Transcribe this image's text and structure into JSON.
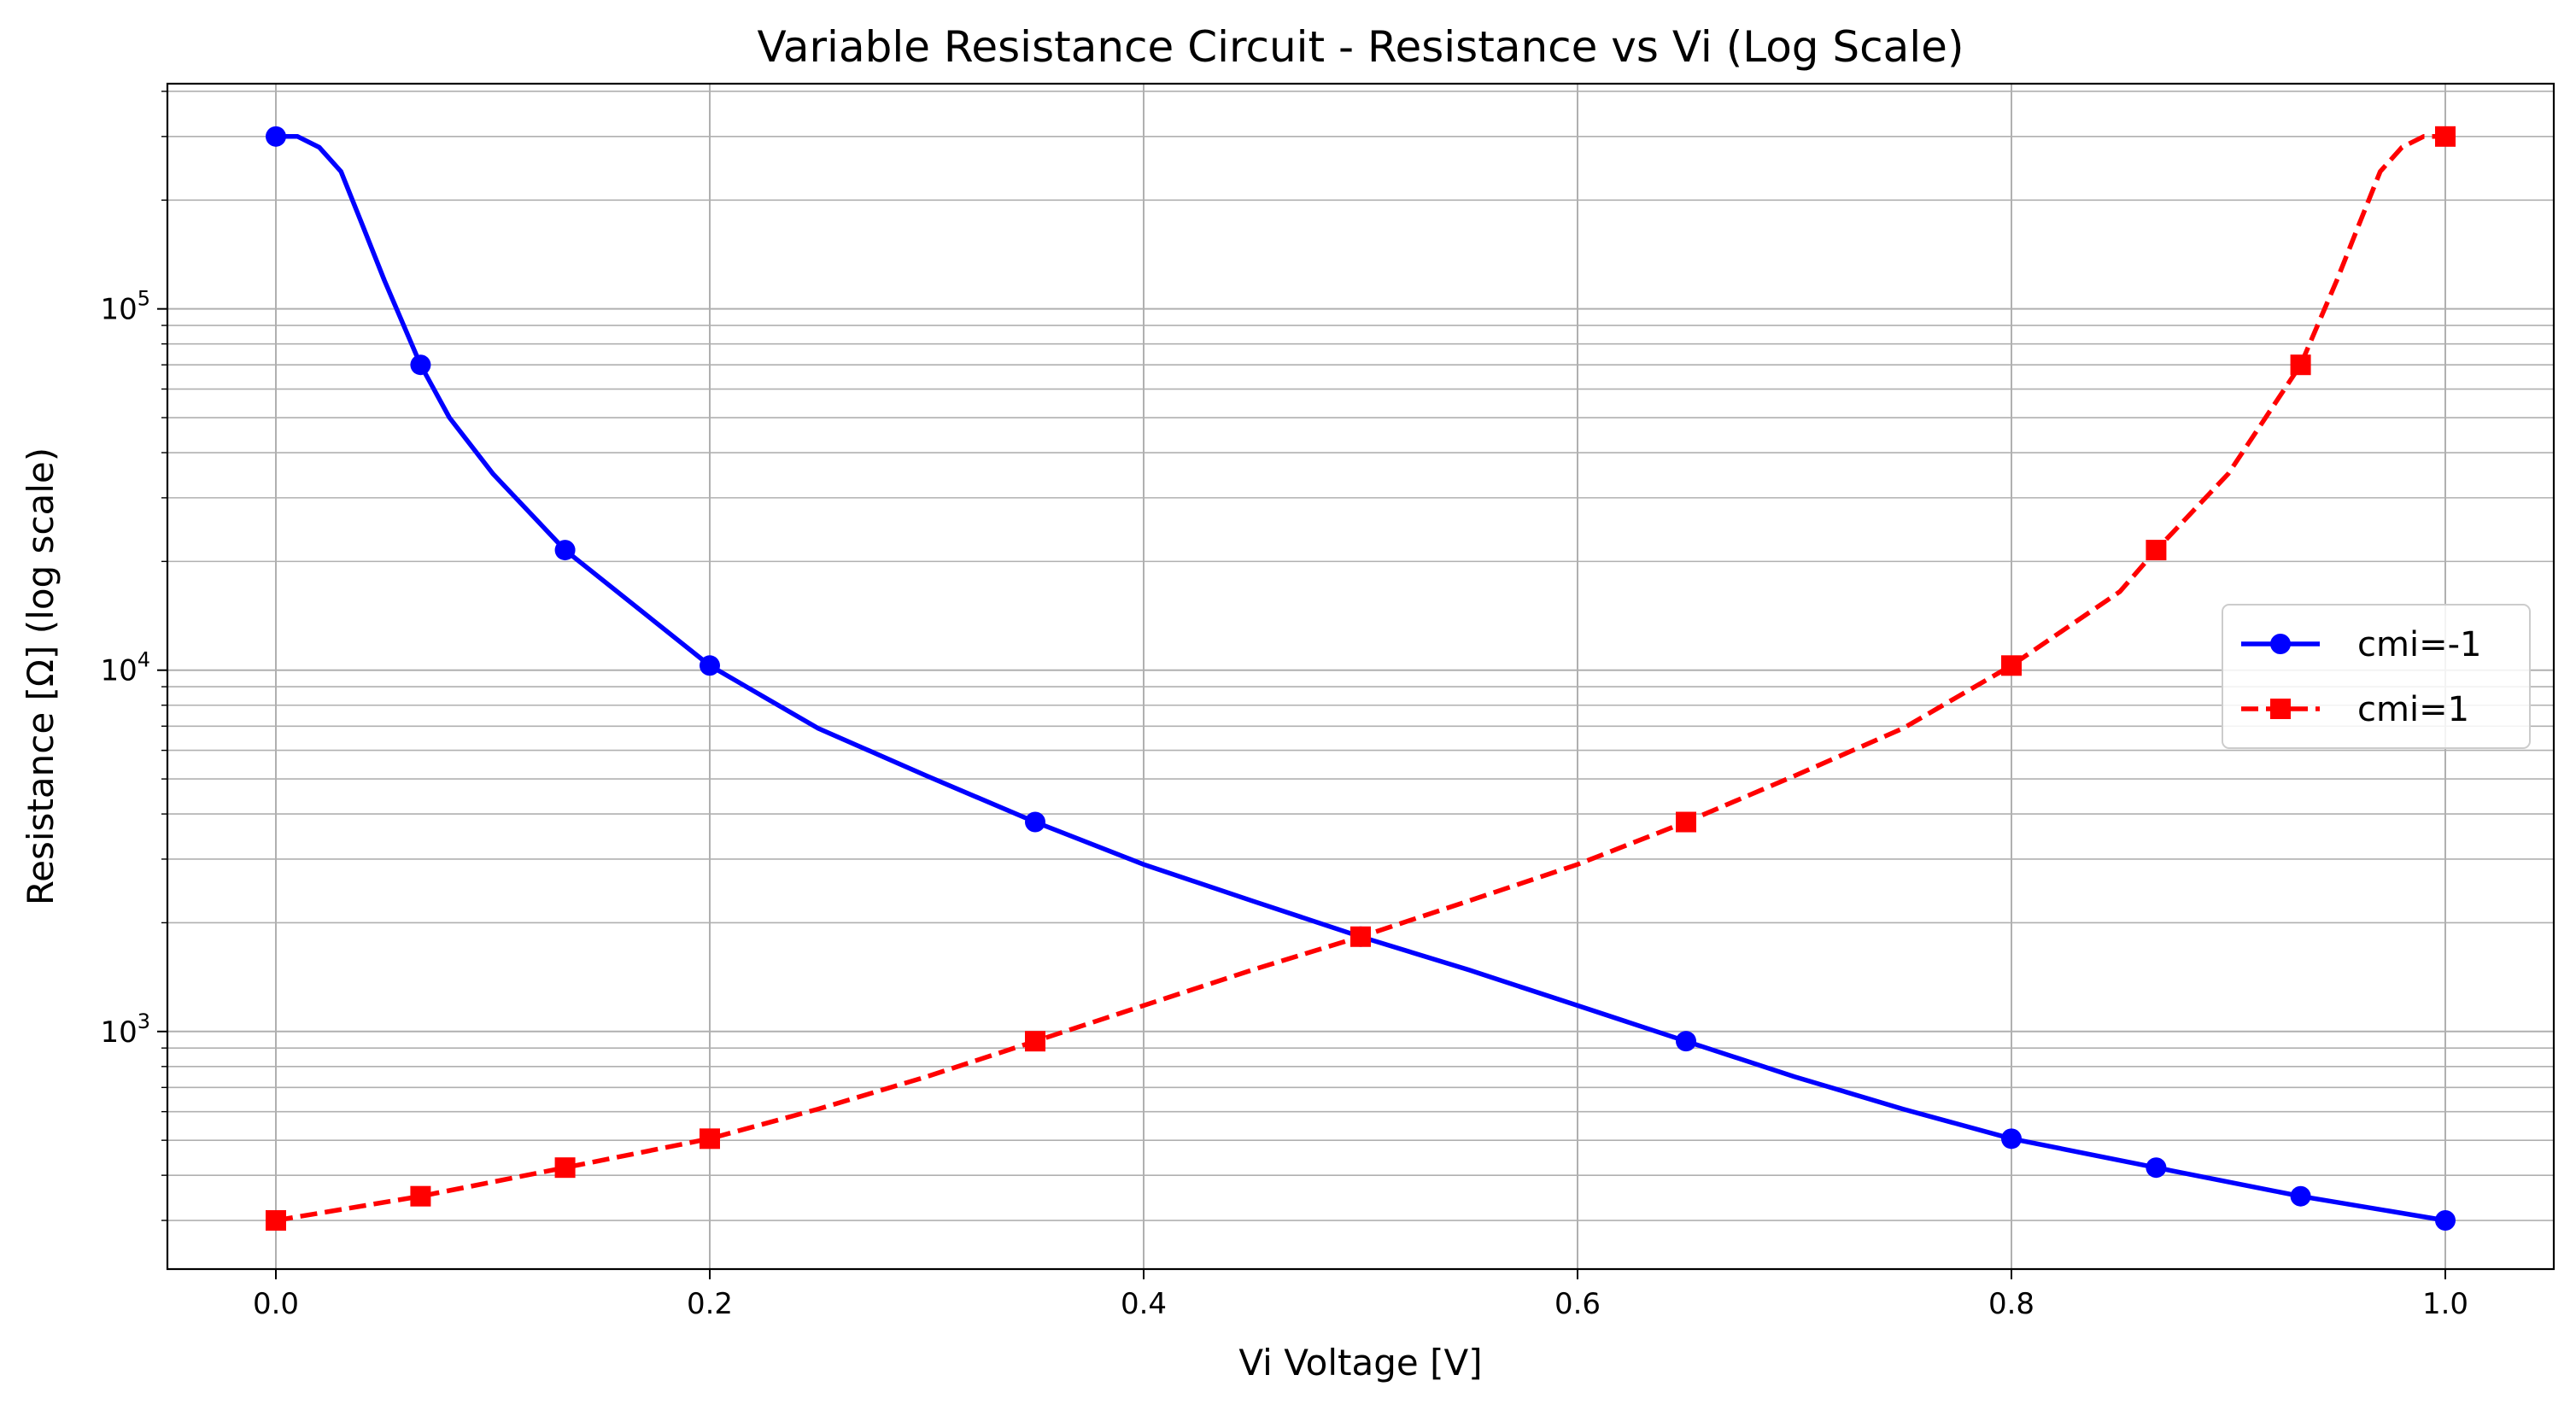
{
  "chart_data": {
    "type": "line",
    "title": "Variable Resistance Circuit - Resistance vs Vi (Log Scale)",
    "xlabel": "Vi Voltage [V]",
    "ylabel": "Resistance [Ω] (log scale)",
    "xlim": [
      -0.05,
      1.05
    ],
    "ylim": [
      220,
      420000
    ],
    "yscale": "log",
    "grid": "both major and minor",
    "legend_position": "center-right",
    "x_ticks": [
      {
        "value": 0.0,
        "label": "0.0"
      },
      {
        "value": 0.2,
        "label": "0.2"
      },
      {
        "value": 0.4,
        "label": "0.4"
      },
      {
        "value": 0.6,
        "label": "0.6"
      },
      {
        "value": 0.8,
        "label": "0.8"
      },
      {
        "value": 1.0,
        "label": "1.0"
      }
    ],
    "y_ticks": [
      {
        "value": 1000,
        "base": "10",
        "exp": "3"
      },
      {
        "value": 10000,
        "base": "10",
        "exp": "4"
      },
      {
        "value": 100000,
        "base": "10",
        "exp": "5"
      }
    ],
    "series": [
      {
        "name": "cmi=-1",
        "color": "#0000ff",
        "line_style": "solid",
        "marker": "circle",
        "x": [
          0.0,
          0.01,
          0.02,
          0.03,
          0.04,
          0.05,
          0.0667,
          0.08,
          0.1,
          0.1333,
          0.2,
          0.25,
          0.3,
          0.35,
          0.4,
          0.45,
          0.5,
          0.55,
          0.6,
          0.65,
          0.7,
          0.75,
          0.8,
          0.8667,
          0.9333,
          1.0
        ],
        "y": [
          300000,
          300000,
          280000,
          240000,
          170000,
          120000,
          70000,
          50000,
          35000,
          21500,
          10300,
          6900,
          5100,
          3800,
          2900,
          2300,
          1830,
          1480,
          1180,
          940,
          750,
          610,
          505,
          420,
          350,
          300
        ],
        "marker_x": [
          0.0,
          0.0667,
          0.1333,
          0.2,
          0.35,
          0.5,
          0.65,
          0.8,
          0.8667,
          0.9333,
          1.0
        ],
        "marker_y": [
          300000,
          70000,
          21500,
          10300,
          3800,
          1830,
          940,
          505,
          420,
          350,
          300
        ]
      },
      {
        "name": "cmi=1",
        "color": "#ff0000",
        "line_style": "dashed",
        "marker": "square",
        "x": [
          0.0,
          0.0667,
          0.1333,
          0.2,
          0.25,
          0.3,
          0.35,
          0.4,
          0.45,
          0.5,
          0.55,
          0.6,
          0.65,
          0.7,
          0.75,
          0.8,
          0.85,
          0.8667,
          0.9,
          0.9333,
          0.95,
          0.96,
          0.97,
          0.98,
          0.99,
          1.0
        ],
        "y": [
          300,
          350,
          420,
          505,
          610,
          750,
          940,
          1180,
          1480,
          1830,
          2300,
          2900,
          3800,
          5100,
          6900,
          10300,
          16500,
          21500,
          35000,
          70000,
          120000,
          170000,
          240000,
          280000,
          300000,
          300000
        ],
        "marker_x": [
          0.0,
          0.0667,
          0.1333,
          0.2,
          0.35,
          0.5,
          0.65,
          0.8,
          0.8667,
          0.9333,
          1.0
        ],
        "marker_y": [
          300,
          350,
          420,
          505,
          940,
          1830,
          3800,
          10300,
          21500,
          70000,
          300000
        ]
      }
    ]
  }
}
